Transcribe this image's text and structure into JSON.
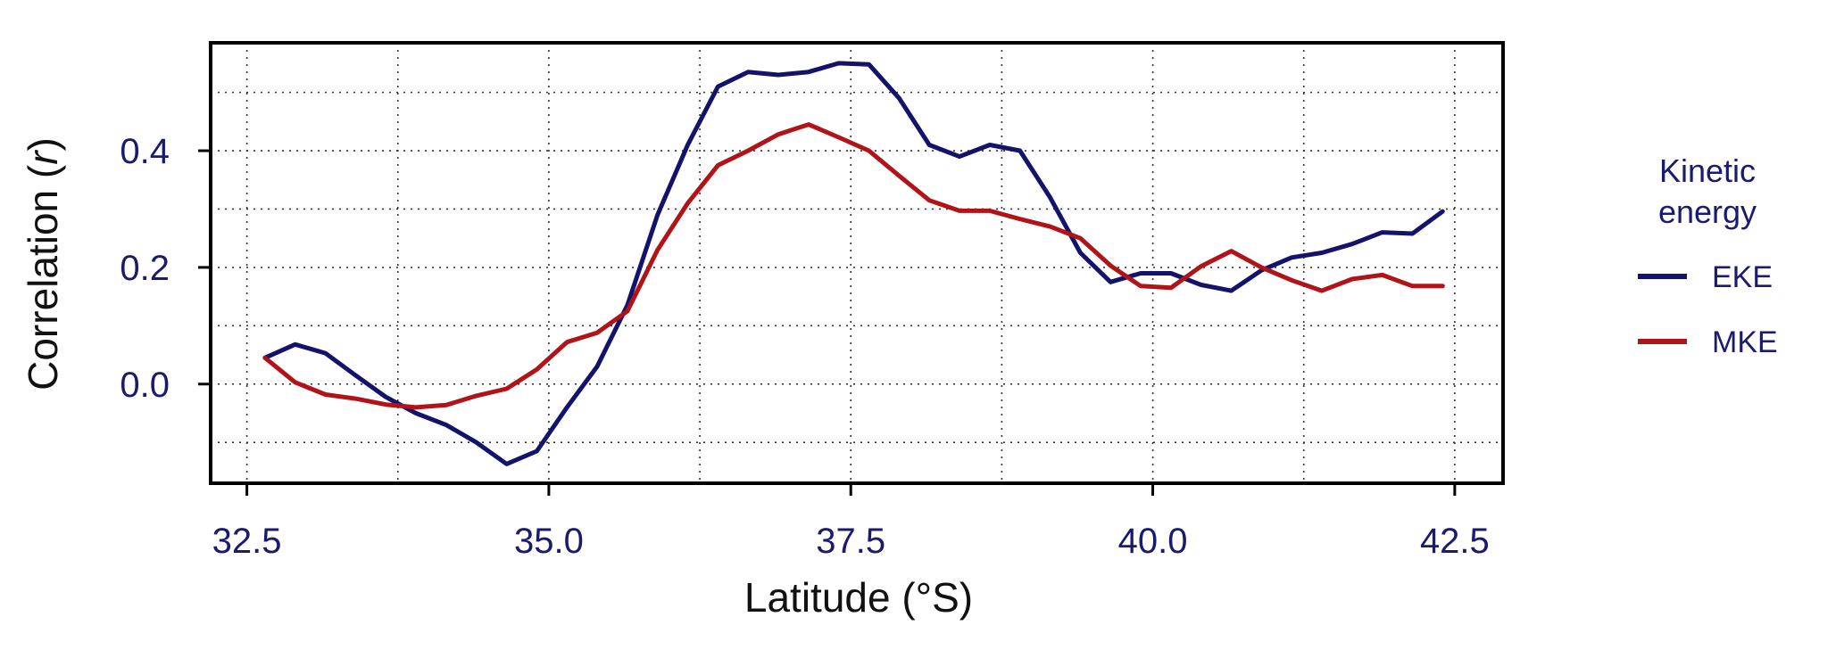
{
  "chart_data": {
    "type": "line",
    "title": "",
    "xlabel": "Latitude (°S)",
    "ylabel_prefix": "Correlation (",
    "ylabel_var": "r",
    "ylabel_suffix": ")",
    "xlim": [
      32.2,
      42.9
    ],
    "ylim": [
      -0.17,
      0.585
    ],
    "x_ticks": [
      32.5,
      35.0,
      37.5,
      40.0,
      42.5
    ],
    "x_tick_labels": [
      "32.5",
      "35.0",
      "37.5",
      "40.0",
      "42.5"
    ],
    "y_ticks": [
      0.0,
      0.2,
      0.4
    ],
    "y_tick_labels": [
      "0.0",
      "0.2",
      "0.4"
    ],
    "x_grid": [
      32.5,
      33.75,
      35.0,
      36.25,
      37.5,
      38.75,
      40.0,
      41.25,
      42.5
    ],
    "y_grid": [
      -0.1,
      0.0,
      0.1,
      0.2,
      0.3,
      0.4,
      0.5
    ],
    "grid": true,
    "legend": {
      "title_line1": "Kinetic",
      "title_line2": "energy",
      "position": "right"
    },
    "x": [
      32.65,
      32.9,
      33.15,
      33.4,
      33.65,
      33.9,
      34.15,
      34.4,
      34.65,
      34.9,
      35.15,
      35.4,
      35.65,
      35.9,
      36.15,
      36.4,
      36.65,
      36.9,
      37.15,
      37.4,
      37.65,
      37.9,
      38.15,
      38.4,
      38.65,
      38.9,
      39.15,
      39.4,
      39.65,
      39.9,
      40.15,
      40.4,
      40.65,
      40.9,
      41.15,
      41.4,
      41.65,
      41.9,
      42.15,
      42.4
    ],
    "series": [
      {
        "name": "EKE",
        "color": "#13136b",
        "values": [
          0.045,
          0.068,
          0.053,
          0.015,
          -0.022,
          -0.05,
          -0.07,
          -0.1,
          -0.137,
          -0.115,
          -0.04,
          0.03,
          0.135,
          0.29,
          0.41,
          0.51,
          0.535,
          0.53,
          0.535,
          0.55,
          0.548,
          0.49,
          0.41,
          0.39,
          0.41,
          0.4,
          0.32,
          0.225,
          0.175,
          0.19,
          0.19,
          0.17,
          0.16,
          0.195,
          0.217,
          0.225,
          0.24,
          0.26,
          0.258,
          0.296
        ]
      },
      {
        "name": "MKE",
        "color": "#b01419",
        "values": [
          0.045,
          0.003,
          -0.018,
          -0.025,
          -0.035,
          -0.04,
          -0.036,
          -0.02,
          -0.008,
          0.025,
          0.072,
          0.088,
          0.125,
          0.23,
          0.31,
          0.375,
          0.4,
          0.428,
          0.445,
          0.423,
          0.4,
          0.357,
          0.315,
          0.297,
          0.297,
          0.283,
          0.27,
          0.25,
          0.203,
          0.168,
          0.165,
          0.202,
          0.228,
          0.2,
          0.178,
          0.16,
          0.18,
          0.187,
          0.168,
          0.168
        ]
      }
    ]
  }
}
